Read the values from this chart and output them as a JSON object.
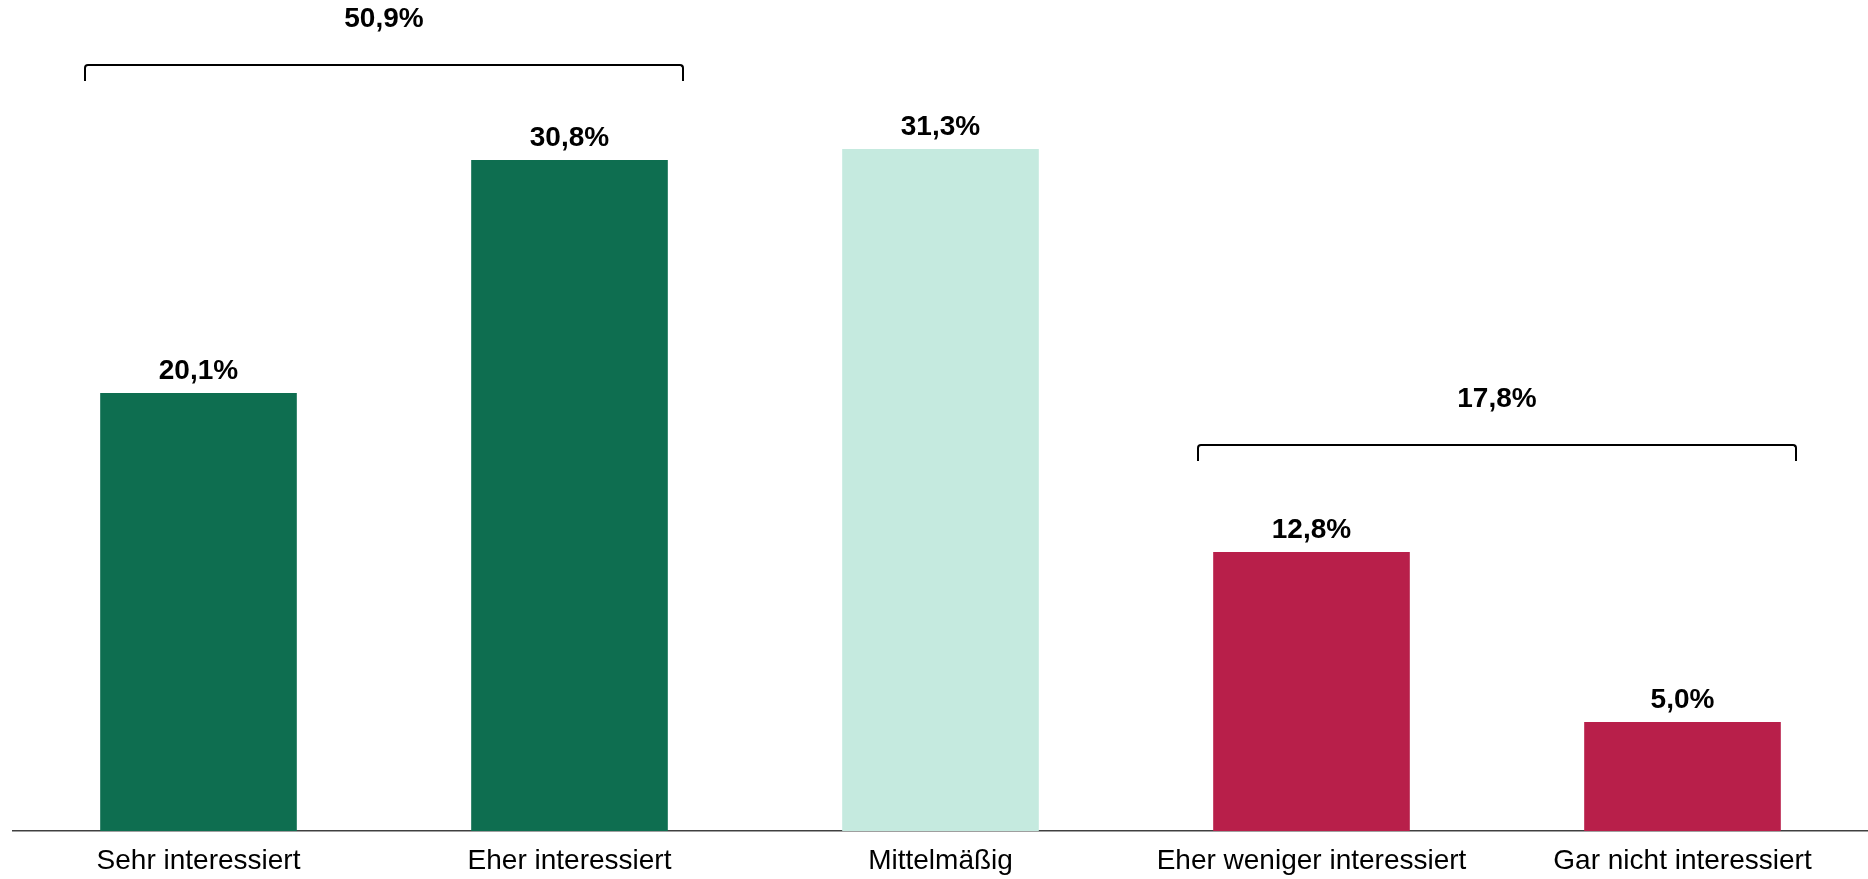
{
  "chart_data": {
    "type": "bar",
    "categories": [
      "Sehr interessiert",
      "Eher interessiert",
      "Mittelmäßig",
      "Eher weniger interessiert",
      "Gar nicht interessiert"
    ],
    "values": [
      20.1,
      30.8,
      31.3,
      12.8,
      5.0
    ],
    "colors": [
      "#0e6e50",
      "#0e6e50",
      "#c5eadf",
      "#b81f4a",
      "#b81f4a"
    ],
    "value_labels": [
      "20,1%",
      "30,8%",
      "31,3%",
      "12,8%",
      "5,0%"
    ],
    "annotations": [
      "50,9%",
      "17,8%"
    ],
    "tick_labels": "x"
  }
}
